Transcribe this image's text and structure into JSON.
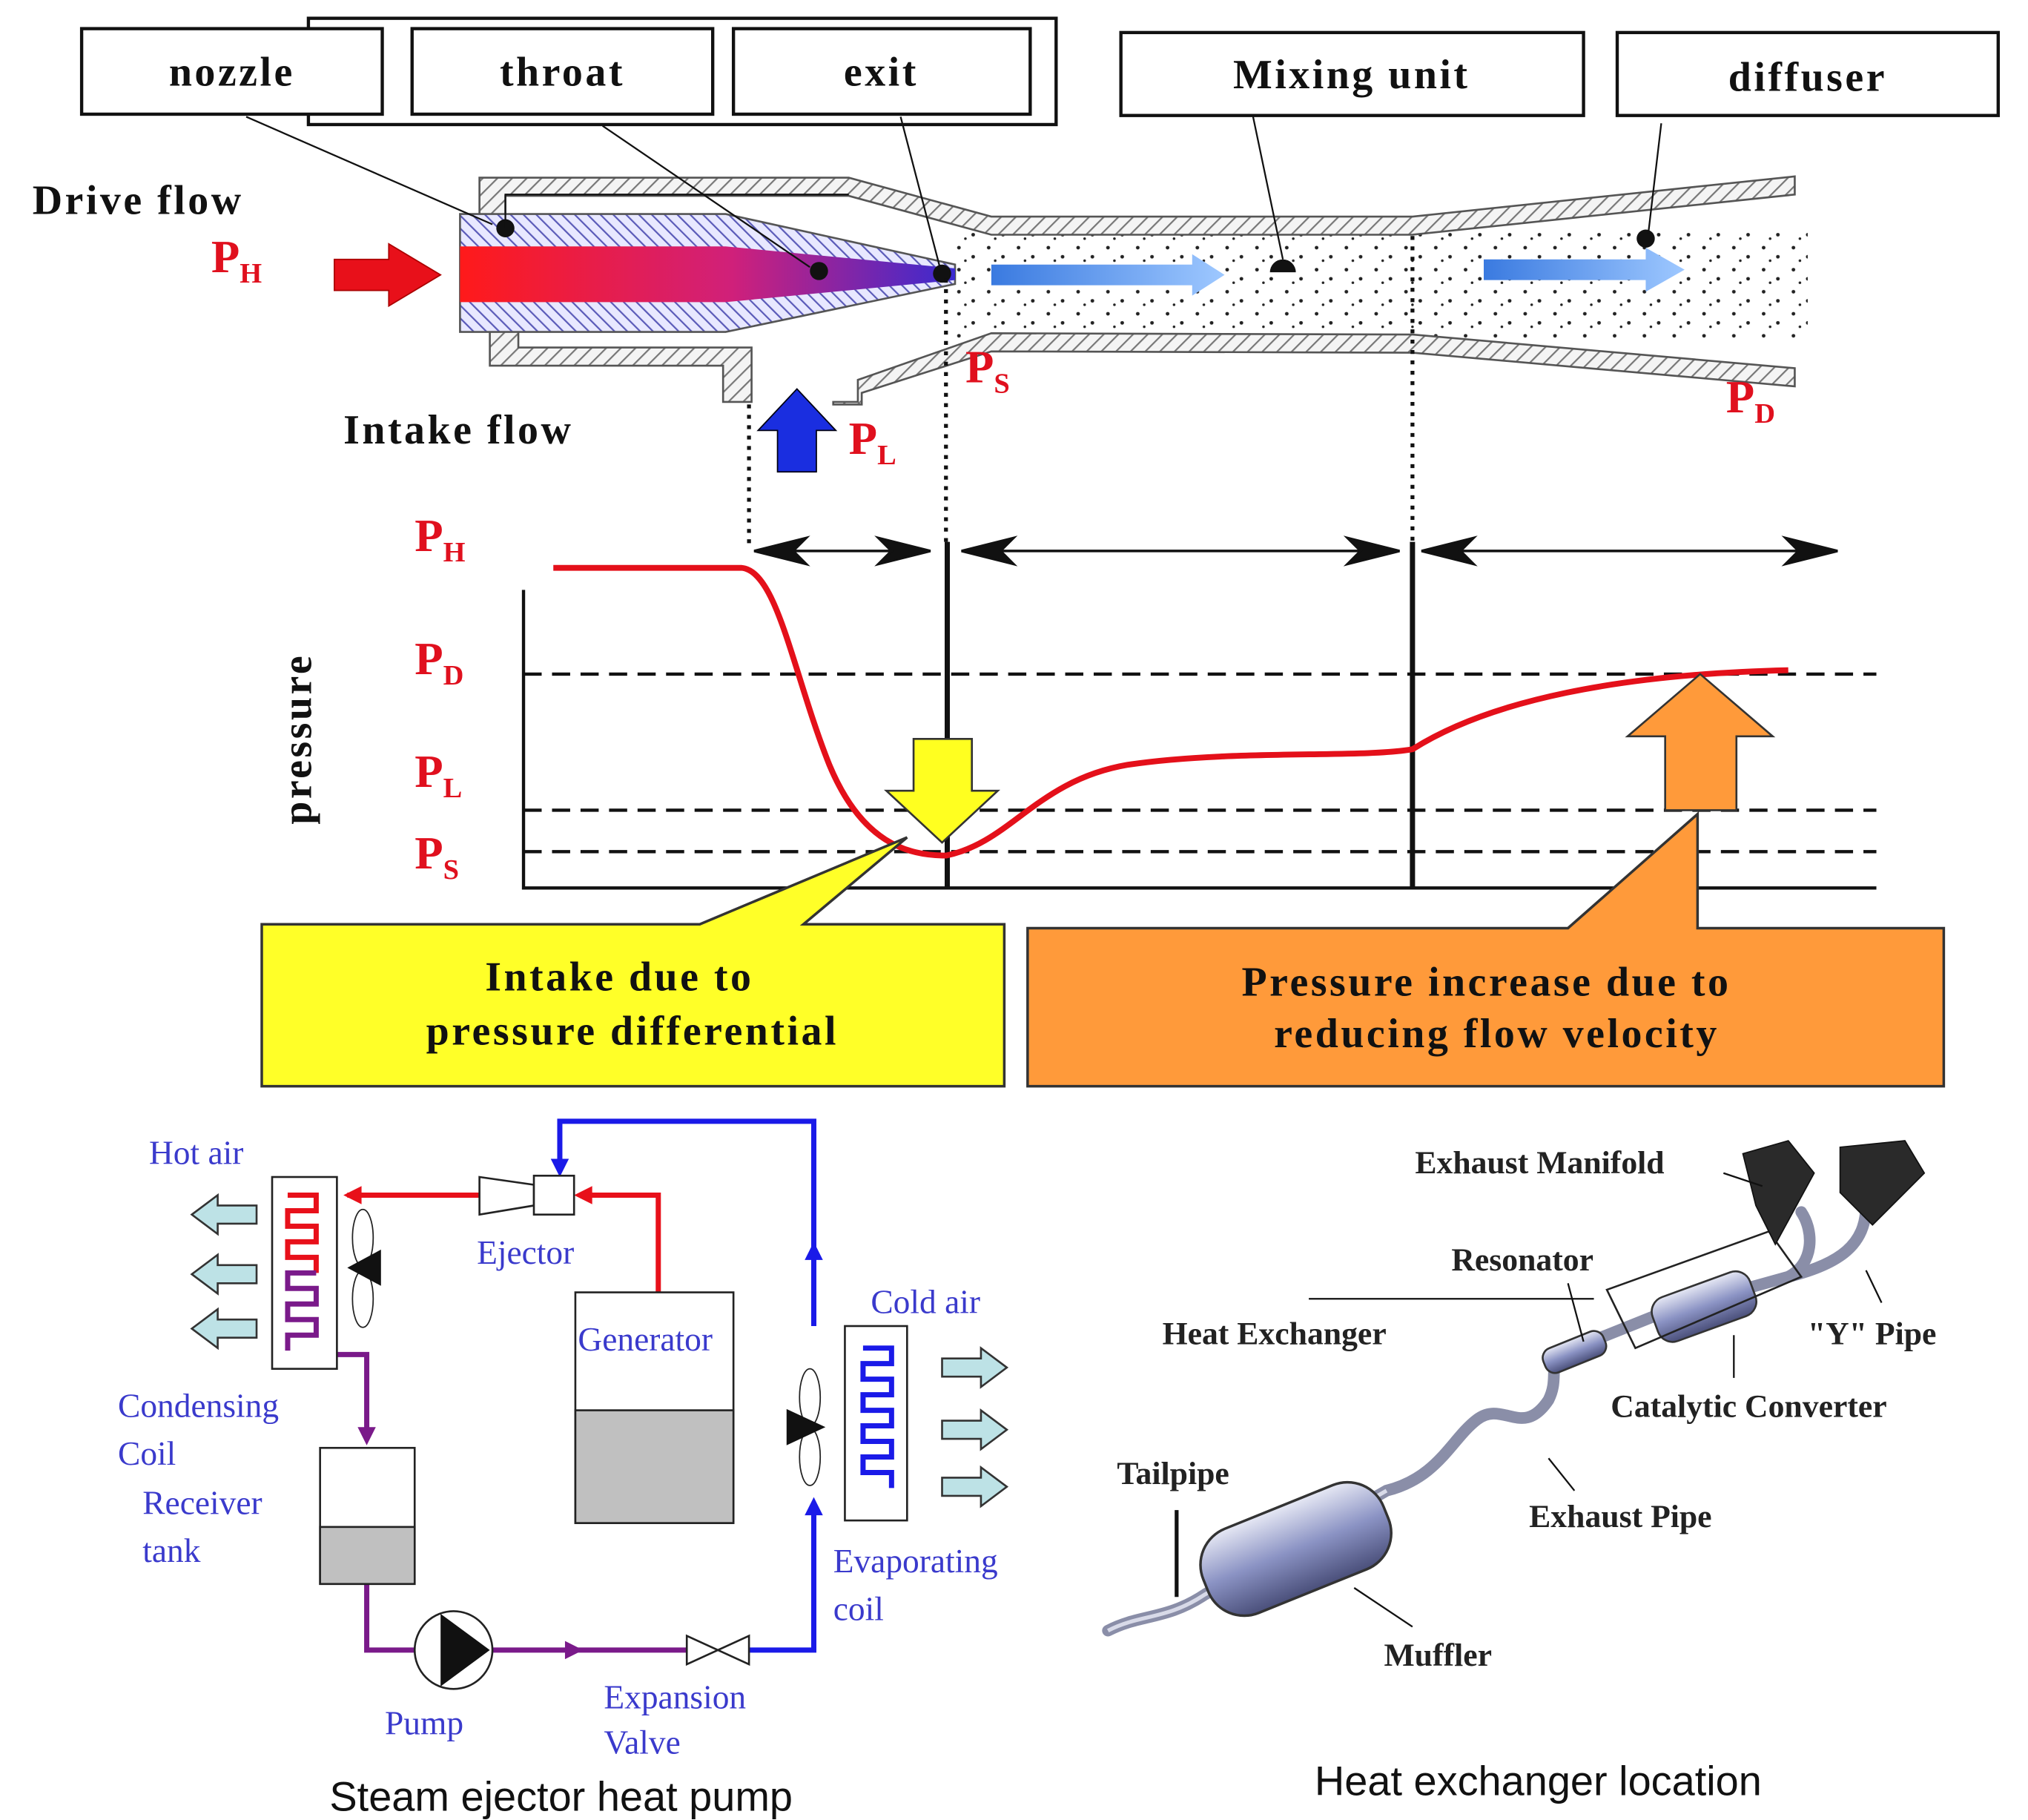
{
  "ejector": {
    "callouts": {
      "nozzle": "nozzle",
      "throat": "throat",
      "exit": "exit",
      "mixing_unit": "Mixing unit",
      "diffuser": "diffuser"
    },
    "drive_flow": "Drive flow",
    "intake_flow": "Intake flow",
    "ph": {
      "symbol": "P",
      "sub": "H"
    },
    "pl": {
      "symbol": "P",
      "sub": "L"
    },
    "ps": {
      "symbol": "P",
      "sub": "S"
    },
    "pd": {
      "symbol": "P",
      "sub": "D"
    }
  },
  "pressure_plot": {
    "axis_label": "pressure",
    "levels": [
      {
        "symbol": "P",
        "sub": "H"
      },
      {
        "symbol": "P",
        "sub": "D"
      },
      {
        "symbol": "P",
        "sub": "L"
      },
      {
        "symbol": "P",
        "sub": "S"
      }
    ],
    "intake_note": [
      "Intake due to",
      "pressure differential"
    ],
    "pressure_note": [
      "Pressure increase due to",
      "reducing flow velocity"
    ]
  },
  "heat_pump": {
    "hot_air": "Hot air",
    "ejector": "Ejector",
    "generator": "Generator",
    "cold_air": "Cold air",
    "condensing_coil": [
      "Condensing",
      "Coil"
    ],
    "receiver_tank": [
      "Receiver",
      "tank"
    ],
    "evaporating_coil": [
      "Evaporating",
      "coil"
    ],
    "pump": "Pump",
    "expansion_valve": [
      "Expansion",
      "Valve"
    ],
    "caption": "Steam ejector heat pump"
  },
  "exhaust": {
    "exhaust_manifold": "Exhaust Manifold",
    "resonator": "Resonator",
    "heat_exchanger": "Heat Exchanger",
    "y_pipe": "\"Y\" Pipe",
    "catalytic_converter": "Catalytic Converter",
    "tailpipe": "Tailpipe",
    "exhaust_pipe": "Exhaust Pipe",
    "muffler": "Muffler",
    "caption": "Heat exchanger location"
  }
}
